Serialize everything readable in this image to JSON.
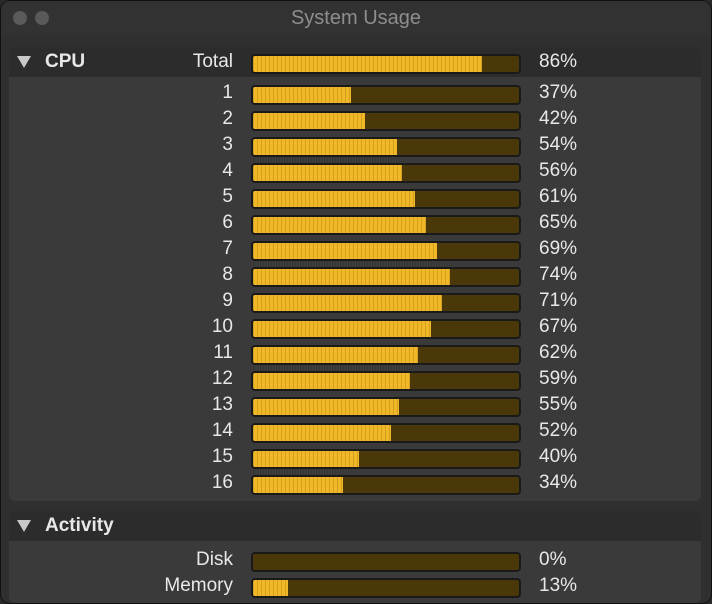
{
  "window": {
    "title": "System Usage"
  },
  "colors": {
    "accent": "#f0b726",
    "track": "#4a3808"
  },
  "cpu": {
    "header": "CPU",
    "rows": [
      {
        "label": "Total",
        "value": 0.86,
        "pct": "86%"
      },
      {
        "label": "1",
        "value": 0.37,
        "pct": "37%"
      },
      {
        "label": "2",
        "value": 0.42,
        "pct": "42%"
      },
      {
        "label": "3",
        "value": 0.54,
        "pct": "54%"
      },
      {
        "label": "4",
        "value": 0.56,
        "pct": "56%"
      },
      {
        "label": "5",
        "value": 0.61,
        "pct": "61%"
      },
      {
        "label": "6",
        "value": 0.65,
        "pct": "65%"
      },
      {
        "label": "7",
        "value": 0.69,
        "pct": "69%"
      },
      {
        "label": "8",
        "value": 0.74,
        "pct": "74%"
      },
      {
        "label": "9",
        "value": 0.71,
        "pct": "71%"
      },
      {
        "label": "10",
        "value": 0.67,
        "pct": "67%"
      },
      {
        "label": "11",
        "value": 0.62,
        "pct": "62%"
      },
      {
        "label": "12",
        "value": 0.59,
        "pct": "59%"
      },
      {
        "label": "13",
        "value": 0.55,
        "pct": "55%"
      },
      {
        "label": "14",
        "value": 0.52,
        "pct": "52%"
      },
      {
        "label": "15",
        "value": 0.4,
        "pct": "40%"
      },
      {
        "label": "16",
        "value": 0.34,
        "pct": "34%"
      }
    ]
  },
  "activity": {
    "header": "Activity",
    "rows": [
      {
        "label": "Disk",
        "value": 0.0,
        "pct": "0%"
      },
      {
        "label": "Memory",
        "value": 0.13,
        "pct": "13%"
      }
    ]
  }
}
